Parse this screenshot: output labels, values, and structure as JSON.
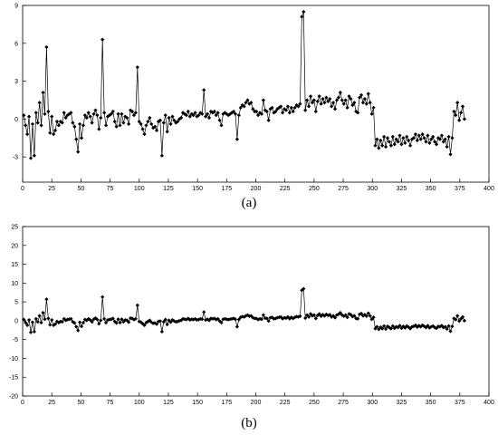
{
  "chart_data": [
    {
      "type": "line",
      "caption": "(a)",
      "xlim": [
        0,
        400
      ],
      "ylim": [
        -5,
        9
      ],
      "x_ticks": [
        0,
        25,
        50,
        75,
        100,
        125,
        150,
        175,
        200,
        225,
        250,
        275,
        300,
        325,
        350,
        375,
        400
      ],
      "y_ticks": [
        -3,
        0,
        3,
        6,
        9
      ],
      "grid": false,
      "marker": "diamond",
      "series": [
        {
          "x_start": 1,
          "x_step": 1.5,
          "values": [
            0.3,
            -0.5,
            -1.2,
            0.2,
            -3.1,
            -0.4,
            -2.9,
            0.5,
            -0.3,
            1.3,
            -0.5,
            2.1,
            0.4,
            5.7,
            0.6,
            -1.1,
            0.2,
            -1.2,
            -0.9,
            -0.2,
            -0.5,
            -0.2,
            -0.3,
            0.5,
            0.1,
            0.3,
            0.4,
            0.5,
            -0.3,
            -0.6,
            -1.6,
            -2.6,
            -0.4,
            -1.5,
            -0.5,
            0.3,
            0.1,
            0.5,
            0.2,
            -0.3,
            0.4,
            0.7,
            0.3,
            -0.8,
            0.1,
            6.3,
            0.5,
            -0.5,
            0.2,
            0.3,
            0.4,
            0.6,
            -0.2,
            -0.6,
            0.4,
            -0.5,
            0.4,
            -0.3,
            0.2,
            0.1,
            -0.4,
            0.7,
            0.6,
            0.3,
            0.5,
            4.1,
            -0.2,
            -0.4,
            -0.8,
            -1.2,
            -0.5,
            -0.2,
            0.1,
            -0.4,
            -0.7,
            -0.6,
            -0.9,
            -0.2,
            -0.1,
            -2.9,
            -0.3,
            0.3,
            -1.0,
            0.1,
            -0.4,
            0.2,
            -0.1,
            -0.3,
            -0.2,
            0.0,
            0.1,
            0.5,
            0.4,
            0.3,
            0.6,
            0.2,
            0.4,
            0.3,
            0.5,
            0.2,
            0.3,
            0.5,
            0.4,
            2.3,
            0.2,
            0.4,
            0.1,
            0.6,
            0.5,
            0.6,
            0.3,
            0.5,
            -0.1,
            -0.5,
            0.4,
            0.5,
            0.4,
            0.3,
            0.4,
            0.5,
            0.6,
            0.4,
            -1.6,
            0.3,
            0.9,
            1.1,
            1.0,
            1.3,
            1.5,
            1.2,
            1.3,
            0.8,
            0.6,
            0.6,
            0.3,
            0.5,
            0.4,
            1.5,
            0.7,
            0.6,
            -0.1,
            0.8,
            0.9,
            0.5,
            0.6,
            0.8,
            0.9,
            1.0,
            0.5,
            0.8,
            0.7,
            1.0,
            0.5,
            0.9,
            0.6,
            0.9,
            1.1,
            1.0,
            1.2,
            8.1,
            8.5,
            0.7,
            1.5,
            1.0,
            1.8,
            1.3,
            1.5,
            0.6,
            1.4,
            1.8,
            1.2,
            1.6,
            1.3,
            1.7,
            1.4,
            1.6,
            1.0,
            1.3,
            0.8,
            1.5,
            1.7,
            2.1,
            1.5,
            1.2,
            1.5,
            0.9,
            1.8,
            1.6,
            1.1,
            1.3,
            0.6,
            0.5,
            1.7,
            1.9,
            1.3,
            1.6,
            1.2,
            2.0,
            1.3,
            0.4,
            0.9,
            -2.1,
            -1.6,
            -2.3,
            -1.7,
            -2.1,
            -1.4,
            -2.2,
            -1.5,
            -1.8,
            -2.1,
            -1.4,
            -2.0,
            -1.6,
            -1.8,
            -1.3,
            -2.0,
            -1.5,
            -1.9,
            -1.4,
            -1.7,
            -2.1,
            -1.6,
            -1.5,
            -1.2,
            -1.7,
            -1.3,
            -1.6,
            -1.2,
            -1.5,
            -1.8,
            -1.3,
            -1.9,
            -1.6,
            -1.4,
            -1.8,
            -2.0,
            -1.5,
            -1.6,
            -1.3,
            -1.8,
            -1.6,
            -2.2,
            -1.4,
            -2.8,
            -1.5,
            0.6,
            0.3,
            1.3,
            -0.1,
            0.5,
            1.0,
            0.0
          ]
        }
      ]
    },
    {
      "type": "line",
      "caption": "(b)",
      "xlim": [
        0,
        400
      ],
      "ylim": [
        -20,
        25
      ],
      "x_ticks": [
        0,
        25,
        50,
        75,
        100,
        125,
        150,
        175,
        200,
        225,
        250,
        275,
        300,
        325,
        350,
        375,
        400
      ],
      "y_ticks": [
        -20,
        -15,
        -10,
        -5,
        0,
        5,
        10,
        15,
        20,
        25
      ],
      "grid": false,
      "marker": "diamond",
      "series": [
        {
          "x_start": 1,
          "x_step": 1.5,
          "values": [
            0.3,
            -0.5,
            -1.2,
            0.2,
            -3.1,
            -0.4,
            -2.9,
            0.5,
            -0.3,
            1.3,
            -0.5,
            2.1,
            0.4,
            5.7,
            0.6,
            -1.1,
            0.2,
            -1.2,
            -0.9,
            -0.2,
            -0.5,
            -0.2,
            -0.3,
            0.5,
            0.1,
            0.3,
            0.4,
            0.5,
            -0.3,
            -0.6,
            -1.6,
            -2.6,
            -0.4,
            -1.5,
            -0.5,
            0.3,
            0.1,
            0.5,
            0.2,
            -0.3,
            0.4,
            0.7,
            0.3,
            -0.8,
            0.1,
            6.3,
            0.5,
            -0.5,
            0.2,
            0.3,
            0.4,
            0.6,
            -0.2,
            -0.6,
            0.4,
            -0.5,
            0.4,
            -0.3,
            0.2,
            0.1,
            -0.4,
            0.7,
            0.6,
            0.3,
            0.5,
            4.1,
            -0.2,
            -0.4,
            -0.8,
            -1.2,
            -0.5,
            -0.2,
            0.1,
            -0.4,
            -0.7,
            -0.6,
            -0.9,
            -0.2,
            -0.1,
            -2.9,
            -0.3,
            0.3,
            -1.0,
            0.1,
            -0.4,
            0.2,
            -0.1,
            -0.3,
            -0.2,
            0.0,
            0.1,
            0.5,
            0.4,
            0.3,
            0.6,
            0.2,
            0.4,
            0.3,
            0.5,
            0.2,
            0.3,
            0.5,
            0.4,
            2.3,
            0.2,
            0.4,
            0.1,
            0.6,
            0.5,
            0.6,
            0.3,
            0.5,
            -0.1,
            -0.5,
            0.4,
            0.5,
            0.4,
            0.3,
            0.4,
            0.5,
            0.6,
            0.4,
            -1.6,
            0.3,
            0.9,
            1.1,
            1.0,
            1.3,
            1.5,
            1.2,
            1.3,
            0.8,
            0.6,
            0.6,
            0.3,
            0.5,
            0.4,
            1.5,
            0.7,
            0.6,
            -0.1,
            0.8,
            0.9,
            0.5,
            0.6,
            0.8,
            0.9,
            1.0,
            0.5,
            0.8,
            0.7,
            1.0,
            0.5,
            0.9,
            0.6,
            0.9,
            1.1,
            1.0,
            1.2,
            8.1,
            8.5,
            0.7,
            1.5,
            1.0,
            1.8,
            1.3,
            1.5,
            0.6,
            1.4,
            1.8,
            1.2,
            1.6,
            1.3,
            1.7,
            1.4,
            1.6,
            1.0,
            1.3,
            0.8,
            1.5,
            1.7,
            2.1,
            1.5,
            1.2,
            1.5,
            0.9,
            1.8,
            1.6,
            1.1,
            1.3,
            0.6,
            0.5,
            1.7,
            1.9,
            1.3,
            1.6,
            1.2,
            2.0,
            1.3,
            0.4,
            0.9,
            -2.1,
            -1.6,
            -2.3,
            -1.7,
            -2.1,
            -1.4,
            -2.2,
            -1.5,
            -1.8,
            -2.1,
            -1.4,
            -2.0,
            -1.6,
            -1.8,
            -1.3,
            -2.0,
            -1.5,
            -1.9,
            -1.4,
            -1.7,
            -2.1,
            -1.6,
            -1.5,
            -1.2,
            -1.7,
            -1.3,
            -1.6,
            -1.2,
            -1.5,
            -1.8,
            -1.3,
            -1.9,
            -1.6,
            -1.4,
            -1.8,
            -2.0,
            -1.5,
            -1.6,
            -1.3,
            -1.8,
            -1.6,
            -2.2,
            -1.4,
            -2.8,
            -1.5,
            0.6,
            0.3,
            1.3,
            -0.1,
            0.5,
            1.0,
            0.0
          ]
        }
      ]
    }
  ]
}
